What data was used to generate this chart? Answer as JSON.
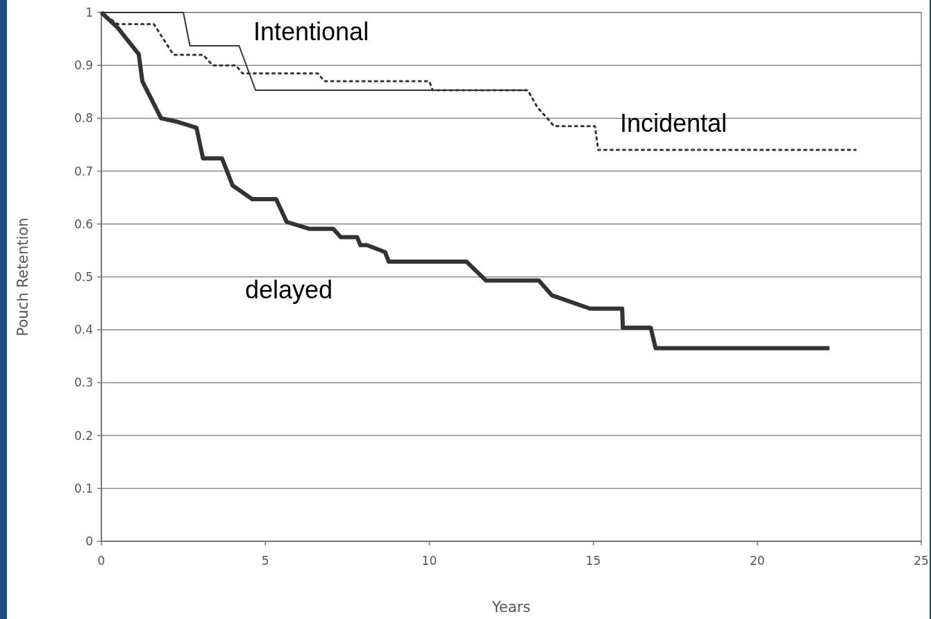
{
  "chart_data": {
    "type": "line",
    "xlabel": "Years",
    "ylabel": "Pouch Retention",
    "xlim": [
      0,
      25
    ],
    "xticks": [
      0,
      5,
      10,
      15,
      20,
      25
    ],
    "ylim": [
      0,
      1
    ],
    "yticks": [
      0,
      0.1,
      0.2,
      0.3,
      0.4,
      0.5,
      0.6,
      0.7,
      0.8,
      0.9,
      1
    ],
    "grid": "y",
    "marker": "none",
    "series": [
      {
        "name": "Intentional",
        "color": "#333333",
        "line_style": "solid",
        "x": [
          0,
          2.5,
          2.7,
          4.2,
          4.7,
          13.0
        ],
        "values": [
          1,
          1,
          0.937,
          0.937,
          0.853,
          0.853
        ]
      },
      {
        "name": "Incidental",
        "color": "#333333",
        "line_style": "dotted",
        "x": [
          0,
          0.5,
          1.6,
          2.2,
          3.1,
          3.4,
          4.1,
          4.3,
          6.6,
          6.8,
          10.0,
          10.1,
          13.0,
          13.3,
          13.6,
          13.8,
          15.05,
          15.15,
          23.0
        ],
        "values": [
          1,
          0.978,
          0.978,
          0.92,
          0.92,
          0.9,
          0.9,
          0.885,
          0.885,
          0.87,
          0.87,
          0.853,
          0.853,
          0.82,
          0.8,
          0.785,
          0.785,
          0.74,
          0.74
        ]
      },
      {
        "name": "delayed",
        "color": "#333333",
        "line_style": "solid",
        "x": [
          0,
          0.5,
          1.14,
          1.25,
          1.82,
          2.27,
          2.9,
          3.1,
          3.68,
          4.0,
          4.6,
          5.33,
          5.65,
          6.33,
          7.07,
          7.3,
          7.8,
          7.9,
          8.1,
          8.65,
          8.76,
          11.13,
          11.73,
          13.34,
          13.74,
          14.9,
          15.88,
          15.9,
          16.75,
          16.9,
          22.2
        ],
        "values": [
          1,
          0.971,
          0.921,
          0.87,
          0.8,
          0.794,
          0.782,
          0.724,
          0.724,
          0.673,
          0.647,
          0.647,
          0.604,
          0.591,
          0.591,
          0.575,
          0.575,
          0.56,
          0.56,
          0.547,
          0.529,
          0.529,
          0.493,
          0.493,
          0.465,
          0.44,
          0.44,
          0.404,
          0.404,
          0.365,
          0.365
        ]
      }
    ]
  }
}
